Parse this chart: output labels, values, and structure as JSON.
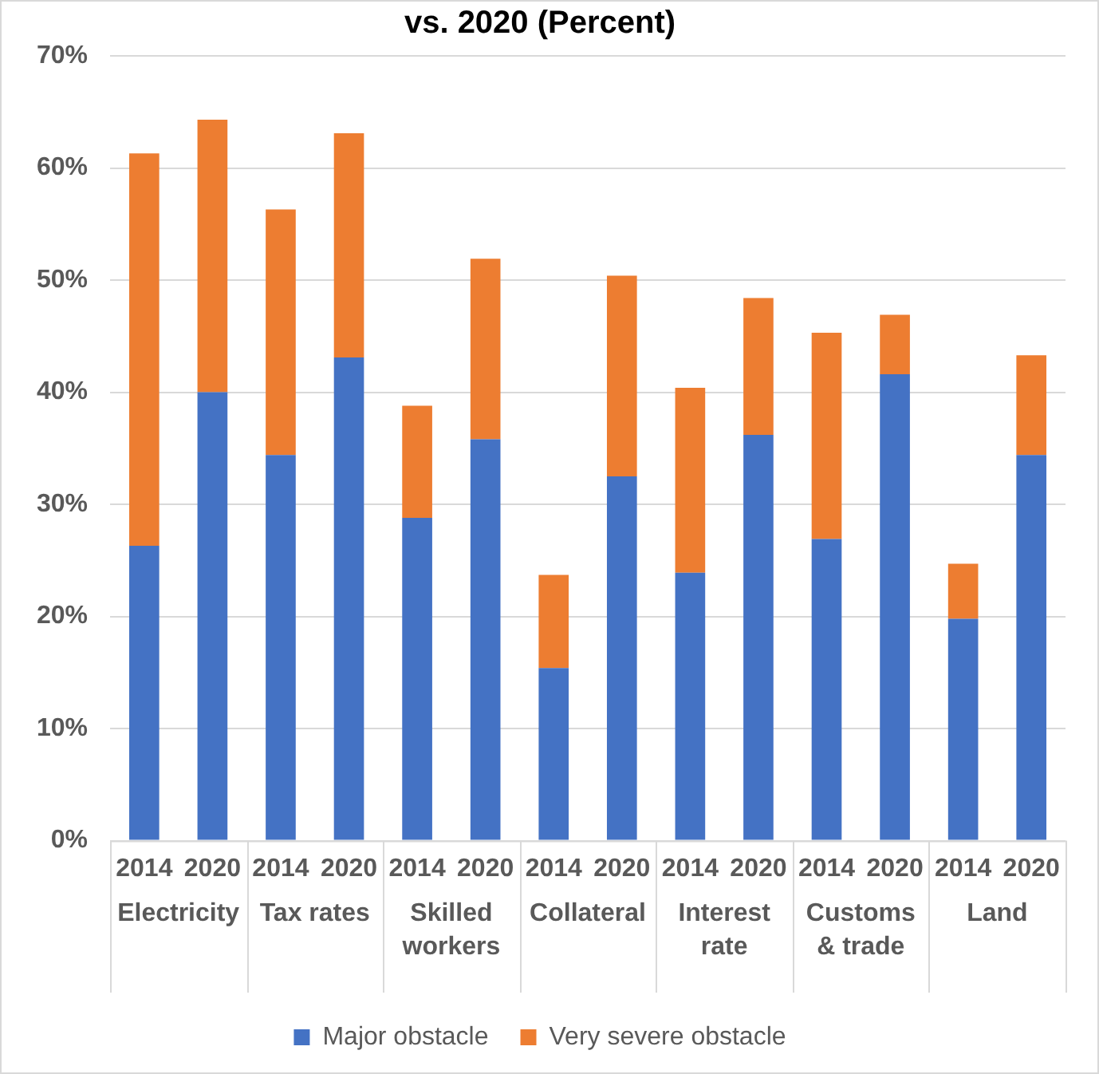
{
  "chart_data": {
    "type": "bar",
    "title": "vs. 2020 (Percent)",
    "stacked": true,
    "categories": [
      "2014",
      "2020",
      "2014",
      "2020",
      "2014",
      "2020",
      "2014",
      "2020",
      "2014",
      "2020",
      "2014",
      "2020",
      "2014",
      "2020"
    ],
    "annotations": [
      "Electricity",
      "Tax rates",
      "Skilled workers",
      "Collateral",
      "Interest rate",
      "Customs & trade",
      "Land"
    ],
    "series": [
      {
        "name": "Major obstacle",
        "color": "#4472c4",
        "values": [
          26.3,
          40.0,
          34.4,
          43.1,
          28.8,
          35.8,
          15.4,
          32.5,
          23.9,
          36.2,
          26.9,
          41.6,
          19.8,
          34.4
        ]
      },
      {
        "name": "Very severe obstacle",
        "color": "#ed7d31",
        "values": [
          35.0,
          24.3,
          21.9,
          20.0,
          10.0,
          16.1,
          8.3,
          17.9,
          16.5,
          12.2,
          18.4,
          5.3,
          4.9,
          8.9
        ]
      }
    ],
    "ylim": [
      0,
      70
    ],
    "yticks": [
      {
        "value": 0,
        "label": "0%"
      },
      {
        "value": 10,
        "label": "10%"
      },
      {
        "value": 20,
        "label": "20%"
      },
      {
        "value": 30,
        "label": "30%"
      },
      {
        "value": 40,
        "label": "40%"
      },
      {
        "value": 50,
        "label": "50%"
      },
      {
        "value": 60,
        "label": "60%"
      },
      {
        "value": 70,
        "label": "70%"
      }
    ],
    "grid": "y",
    "legend": "bottom"
  }
}
